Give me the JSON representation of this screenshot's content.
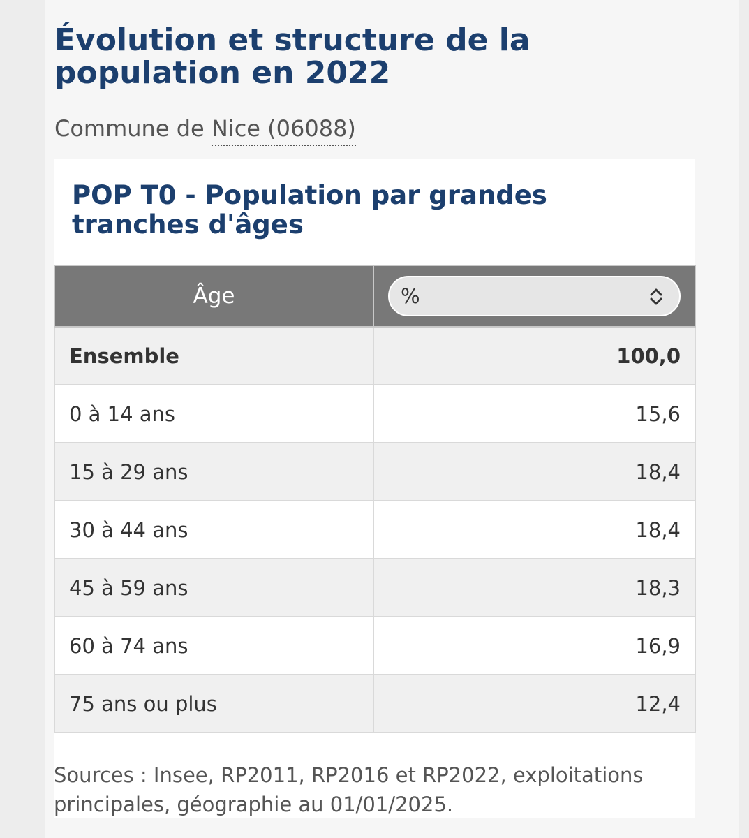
{
  "header": {
    "title": "Évolution et structure de la population en 2022",
    "commune_prefix": "Commune de ",
    "commune_link": "Nice (06088)"
  },
  "card": {
    "title": "POP T0 - Population par grandes tranches d'âges",
    "table": {
      "age_header": "Âge",
      "unit_select": {
        "selected": "%",
        "icon": "chevron-up-down-icon"
      },
      "rows": [
        {
          "label": "Ensemble",
          "value": "100,0",
          "total": true
        },
        {
          "label": "0 à 14 ans",
          "value": "15,6"
        },
        {
          "label": "15 à 29 ans",
          "value": "18,4"
        },
        {
          "label": "30 à 44 ans",
          "value": "18,4"
        },
        {
          "label": "45 à 59 ans",
          "value": "18,3"
        },
        {
          "label": "60 à 74 ans",
          "value": "16,9"
        },
        {
          "label": "75 ans ou plus",
          "value": "12,4"
        }
      ]
    },
    "sources": "Sources : Insee, RP2011, RP2016 et RP2022, exploitations principales, géographie au 01/01/2025."
  },
  "colors": {
    "title": "#1c3f6e",
    "header_bg": "#787878",
    "shaded_row": "#f0f0f0"
  }
}
